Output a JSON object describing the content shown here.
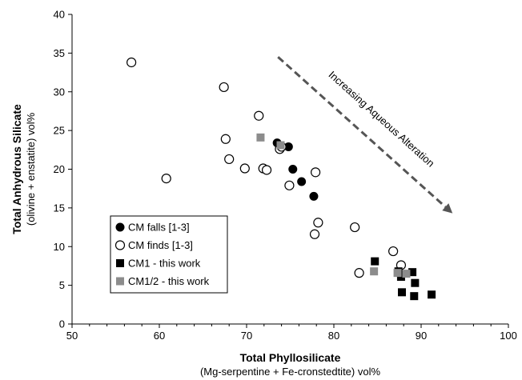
{
  "chart_data": {
    "type": "scatter",
    "xlabel": "Total Phyllosilicate",
    "xlabel_sub": "(Mg-serpentine + Fe-cronstedtite) vol%",
    "ylabel": "Total Anhydrous Silicate",
    "ylabel_sub": "(olivine + enstatite) vol%",
    "xlim": [
      50,
      100
    ],
    "ylim": [
      0,
      40
    ],
    "xticks": [
      "50",
      "60",
      "70",
      "80",
      "90",
      "100"
    ],
    "yticks": [
      "0",
      "5",
      "10",
      "15",
      "20",
      "25",
      "30",
      "35",
      "40"
    ],
    "grid": false,
    "legend_position": "lower-left",
    "annotation": {
      "text": "Increasing Aqueous Alteration",
      "arrow_from": [
        73.6,
        34.5
      ],
      "arrow_to": [
        93.6,
        14.3
      ],
      "color": "#555555"
    },
    "series": [
      {
        "name": "CM falls [1-3]",
        "marker": "filled-circle",
        "color": "#000000",
        "x": [
          73.5,
          74.8,
          75.3,
          76.3,
          77.7
        ],
        "y": [
          23.4,
          22.9,
          20.0,
          18.4,
          16.5
        ]
      },
      {
        "name": "CM finds [1-3]",
        "marker": "open-circle",
        "color": "#000000",
        "x": [
          56.8,
          60.8,
          67.4,
          67.6,
          68.0,
          69.8,
          71.4,
          71.9,
          72.3,
          73.8,
          74.0,
          74.9,
          77.9,
          78.2,
          77.8,
          82.4,
          82.9,
          86.8,
          87.7
        ],
        "y": [
          33.8,
          18.8,
          30.6,
          23.9,
          21.3,
          20.1,
          26.9,
          20.1,
          19.9,
          22.6,
          22.9,
          17.9,
          19.6,
          13.1,
          11.6,
          12.5,
          6.6,
          9.4,
          7.6
        ]
      },
      {
        "name": "CM1 - this work",
        "marker": "filled-square",
        "color": "#000000",
        "x": [
          84.7,
          87.4,
          87.7,
          87.8,
          89.0,
          89.3,
          89.2,
          91.2
        ],
        "y": [
          8.1,
          6.8,
          6.1,
          4.1,
          6.7,
          5.3,
          3.6,
          3.8
        ]
      },
      {
        "name": "CM1/2 - this work",
        "marker": "grey-square",
        "color": "#8c8c8c",
        "x": [
          71.6,
          73.9,
          84.6,
          87.3,
          88.3
        ],
        "y": [
          24.1,
          23.1,
          6.8,
          6.6,
          6.5
        ]
      }
    ]
  }
}
